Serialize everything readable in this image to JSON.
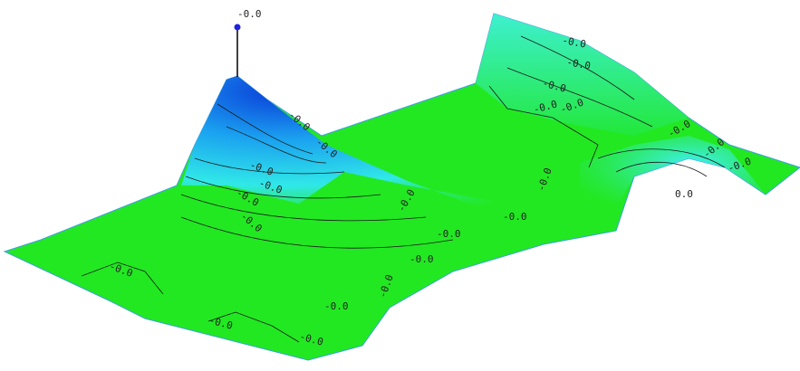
{
  "markers": [
    {
      "label": "-0.0"
    },
    {
      "label": "0.0"
    }
  ],
  "contour_labels": [
    "-0.0",
    "-0.0",
    "-0.0",
    "-0.0",
    "-0.0",
    "-0.0",
    "-0.0",
    "-0.0",
    "-0.0",
    "-0.0",
    "-0.0",
    "-0.0",
    "-0.0",
    "-0.0",
    "-0.0",
    "-0.0",
    "-0.0",
    "-0.0",
    "-0.0",
    "-0.0",
    "-0.0",
    "-0.0",
    "-0.0",
    "-0.0"
  ]
}
